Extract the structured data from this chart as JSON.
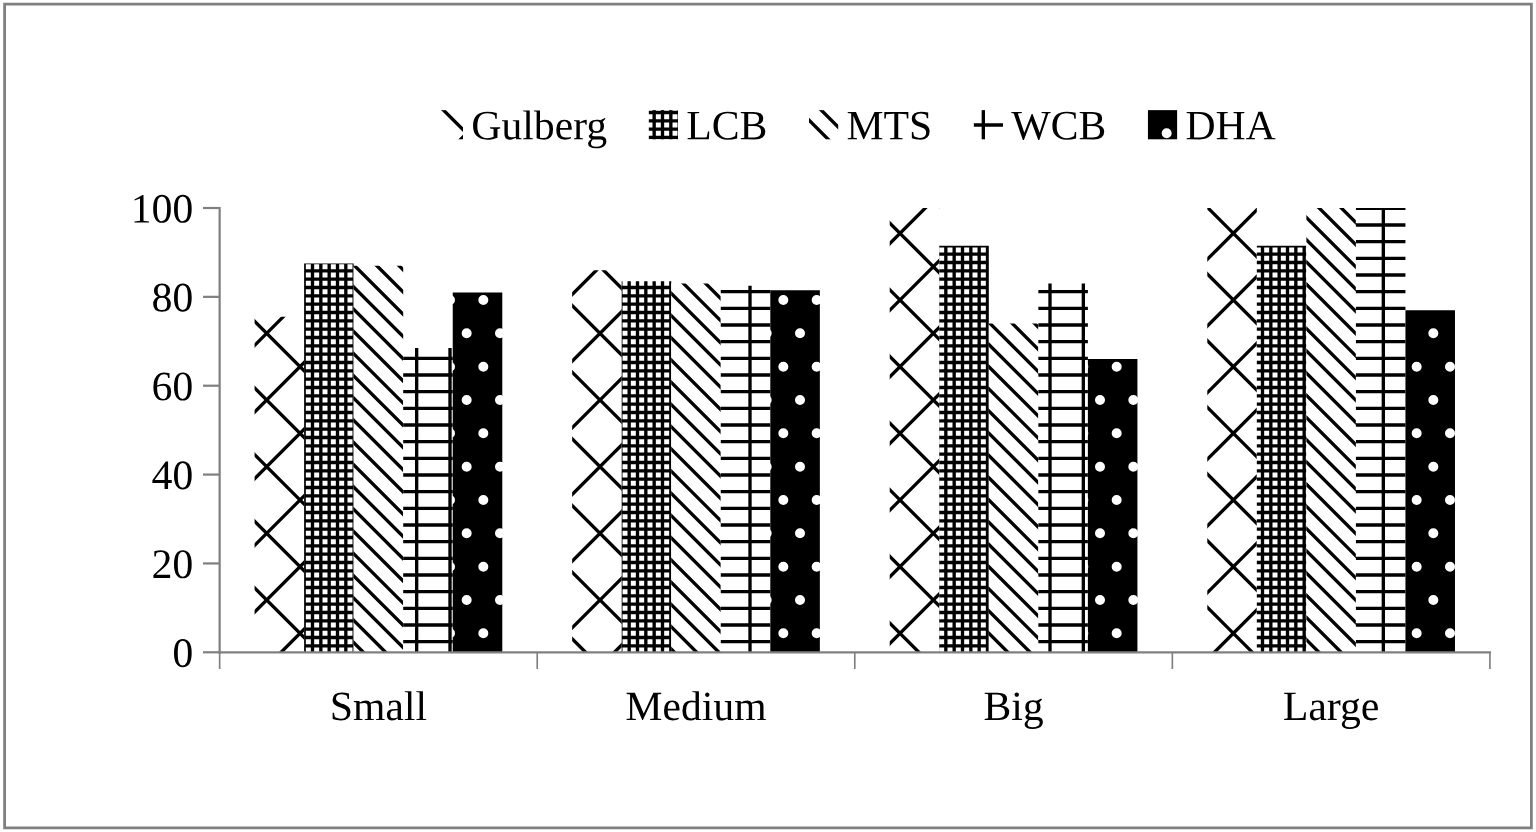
{
  "chart_data": {
    "type": "bar",
    "categories": [
      "Small",
      "Medium",
      "Big",
      "Large"
    ],
    "series": [
      {
        "name": "Gulberg",
        "color": "#ffffff",
        "values": [
          75.5,
          86,
          100,
          100
        ]
      },
      {
        "name": "LCB",
        "color": "#ffffff",
        "values": [
          87.5,
          83.5,
          91.5,
          91.5
        ]
      },
      {
        "name": "MTS",
        "color": "#ffffff",
        "values": [
          87,
          83,
          74,
          100
        ]
      },
      {
        "name": "WCB",
        "color": "#ffffff",
        "values": [
          68.5,
          82.5,
          83,
          100
        ]
      },
      {
        "name": "DHA",
        "color": "#000000",
        "values": [
          81,
          81.5,
          66,
          77
        ]
      }
    ],
    "ylim": [
      0,
      100
    ],
    "yticks": [
      0,
      20,
      40,
      60,
      80,
      100
    ],
    "grid": false,
    "legend": "top"
  }
}
